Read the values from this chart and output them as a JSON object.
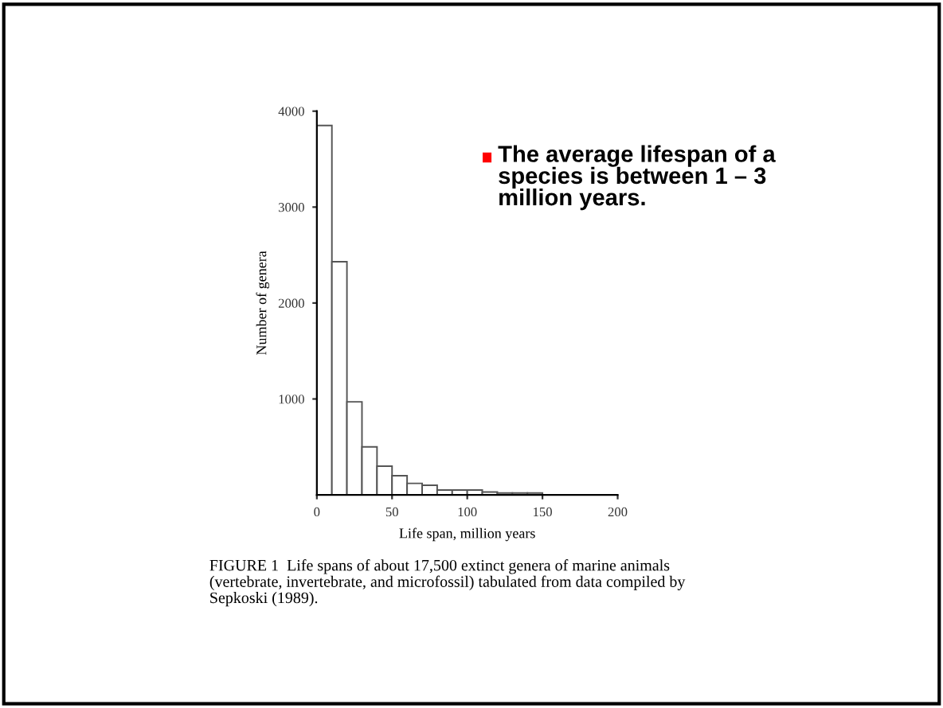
{
  "chart_data": {
    "type": "histogram",
    "xlabel": "Life span, million years",
    "ylabel": "Number of genera",
    "bins": [
      0,
      10,
      20,
      30,
      40,
      50,
      60,
      70,
      80,
      90,
      100,
      110,
      120,
      130,
      140,
      150,
      160,
      170,
      180,
      190,
      200
    ],
    "values": [
      3850,
      2430,
      970,
      500,
      300,
      200,
      120,
      100,
      50,
      50,
      50,
      30,
      20,
      20,
      20,
      null,
      null,
      null,
      null,
      null
    ],
    "color": "#ffffff",
    "xlim": [
      0,
      200
    ],
    "xticks": [
      0,
      50,
      100,
      150,
      200
    ],
    "ylim": [
      0,
      4000
    ],
    "yticks": [
      1000,
      2000,
      3000,
      4000
    ],
    "grid": false,
    "annotations": [
      "The average lifespan of a\nspecies is between 1 – 3\nmillion years.",
      "FIGURE 1  Life spans of about 17,500 extinct genera of marine animals\n(vertebrate, invertebrate, and microfossil) tabulated from data compiled by\nSepkoski (1989)."
    ]
  }
}
